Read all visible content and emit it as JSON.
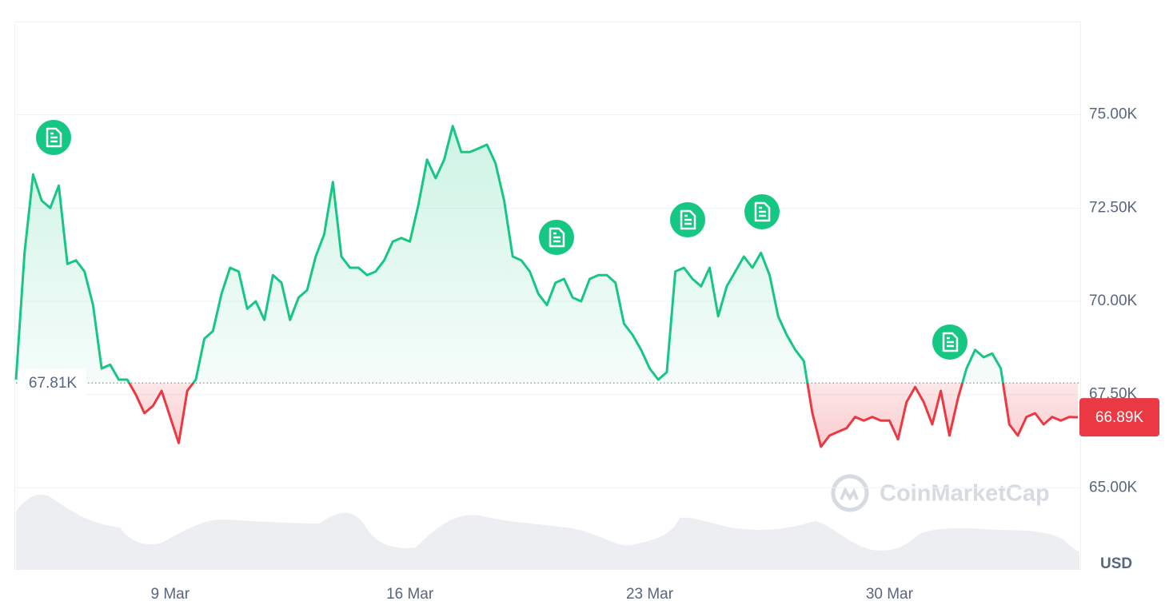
{
  "chart_data": {
    "type": "line",
    "categories": [
      null,
      null,
      null,
      null,
      null,
      null,
      null,
      null,
      null,
      null,
      null,
      null,
      null,
      null,
      null,
      null,
      null,
      null,
      "9 Mar",
      null,
      null,
      null,
      null,
      null,
      null,
      null,
      null,
      null,
      null,
      null,
      null,
      null,
      null,
      null,
      null,
      null,
      null,
      null,
      null,
      null,
      null,
      null,
      null,
      null,
      null,
      null,
      "16 Mar",
      null,
      null,
      null,
      null,
      null,
      null,
      null,
      null,
      null,
      null,
      null,
      null,
      null,
      null,
      null,
      null,
      null,
      null,
      null,
      null,
      null,
      null,
      null,
      null,
      null,
      null,
      null,
      "23 Mar",
      null,
      null,
      null,
      null,
      null,
      null,
      null,
      null,
      null,
      null,
      null,
      null,
      null,
      null,
      null,
      null,
      null,
      null,
      null,
      null,
      null,
      null,
      null,
      null,
      null,
      null,
      null,
      "30 Mar",
      null,
      null,
      null,
      null,
      null,
      null,
      null,
      null,
      null,
      null,
      null,
      null,
      null,
      null,
      null,
      null,
      null,
      null,
      null,
      null,
      null,
      null
    ],
    "values": [
      67900,
      71300,
      73400,
      72700,
      72500,
      73100,
      71000,
      71100,
      70800,
      69900,
      68200,
      68300,
      67900,
      67900,
      67500,
      67000,
      67200,
      67600,
      66900,
      66200,
      67600,
      67900,
      69000,
      69200,
      70200,
      70900,
      70800,
      69800,
      70000,
      69500,
      70700,
      70500,
      69500,
      70100,
      70300,
      71200,
      71800,
      73200,
      71200,
      70900,
      70900,
      70700,
      70800,
      71100,
      71600,
      71700,
      71600,
      72600,
      73800,
      73300,
      73800,
      74700,
      74000,
      74000,
      74100,
      74200,
      73700,
      72700,
      71200,
      71100,
      70800,
      70200,
      69900,
      70500,
      70600,
      70100,
      70000,
      70600,
      70700,
      70700,
      70500,
      69400,
      69100,
      68700,
      68200,
      67900,
      68100,
      70800,
      70900,
      70600,
      70400,
      70900,
      69600,
      70400,
      70800,
      71200,
      70900,
      71300,
      70700,
      69600,
      69100,
      68700,
      68400,
      67000,
      66100,
      66400,
      66500,
      66600,
      66900,
      66800,
      66900,
      66800,
      66800,
      66300,
      67300,
      67700,
      67300,
      66700,
      67600,
      66400,
      67400,
      68200,
      68700,
      68500,
      68600,
      68200,
      66700,
      66400,
      66900,
      67000,
      66700,
      66900,
      66800,
      66900,
      66890
    ],
    "color_up": "#16c784",
    "color_down": "#ea3943",
    "baseline": {
      "value": 67810,
      "label": "67.81K"
    },
    "last_label": "66.89K",
    "ylim": [
      62800,
      77500
    ],
    "yticks": [
      {
        "value": 65000,
        "label": "65.00K"
      },
      {
        "value": 67500,
        "label": "67.50K"
      },
      {
        "value": 70000,
        "label": "70.00K"
      },
      {
        "value": 72500,
        "label": "72.50K"
      },
      {
        "value": 75000,
        "label": "75.00K"
      }
    ],
    "grid": true,
    "currency": "USD",
    "watermark": "CoinMarketCap"
  }
}
